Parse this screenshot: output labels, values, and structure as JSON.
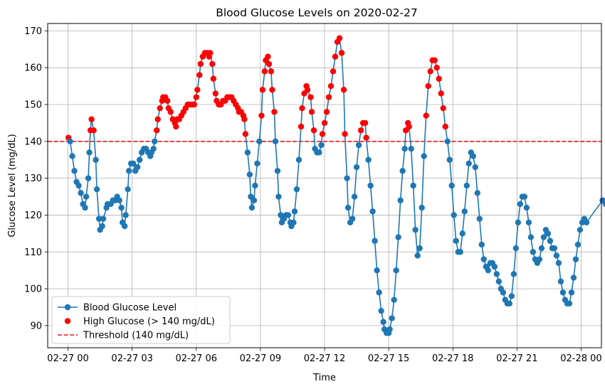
{
  "chart_data": {
    "type": "line",
    "title": "Blood Glucose Levels on 2020-02-27",
    "xlabel": "Time",
    "ylabel": "Glucose Level (mg/dL)",
    "x_unit": "hours since 02-27 00:00",
    "xlim": [
      -0.95,
      24.95
    ],
    "ylim": [
      84,
      172
    ],
    "x_ticks": [
      {
        "value": 0,
        "label": "02-27 00"
      },
      {
        "value": 3,
        "label": "02-27 03"
      },
      {
        "value": 6,
        "label": "02-27 06"
      },
      {
        "value": 9,
        "label": "02-27 09"
      },
      {
        "value": 12,
        "label": "02-27 12"
      },
      {
        "value": 15,
        "label": "02-27 15"
      },
      {
        "value": 18,
        "label": "02-27 18"
      },
      {
        "value": 21,
        "label": "02-27 21"
      },
      {
        "value": 24,
        "label": "02-28 00"
      }
    ],
    "y_ticks": [
      90,
      100,
      110,
      120,
      130,
      140,
      150,
      160,
      170
    ],
    "grid": true,
    "threshold": {
      "value": 140,
      "name": "Threshold (140 mg/dL)",
      "color": "#e41a1c",
      "style": "dashed"
    },
    "high_color": "#ff0000",
    "line_color": "#1f77b4",
    "series": [
      {
        "name": "Blood Glucose Level",
        "points": [
          [
            0.02,
            141
          ],
          [
            0.1,
            140
          ],
          [
            0.2,
            136
          ],
          [
            0.3,
            132
          ],
          [
            0.4,
            129
          ],
          [
            0.5,
            128
          ],
          [
            0.6,
            126
          ],
          [
            0.7,
            123
          ],
          [
            0.8,
            122
          ],
          [
            0.85,
            125
          ],
          [
            0.95,
            130
          ],
          [
            1.0,
            137
          ],
          [
            1.05,
            143
          ],
          [
            1.1,
            146
          ],
          [
            1.2,
            143
          ],
          [
            1.3,
            135
          ],
          [
            1.35,
            127
          ],
          [
            1.45,
            119
          ],
          [
            1.5,
            116
          ],
          [
            1.6,
            117
          ],
          [
            1.65,
            119
          ],
          [
            1.8,
            122
          ],
          [
            1.85,
            123
          ],
          [
            2.0,
            123
          ],
          [
            2.1,
            124
          ],
          [
            2.2,
            124
          ],
          [
            2.3,
            125
          ],
          [
            2.4,
            124
          ],
          [
            2.5,
            122
          ],
          [
            2.55,
            118
          ],
          [
            2.65,
            117
          ],
          [
            2.7,
            120
          ],
          [
            2.8,
            127
          ],
          [
            2.85,
            132
          ],
          [
            2.95,
            134
          ],
          [
            3.05,
            134
          ],
          [
            3.15,
            132
          ],
          [
            3.25,
            133
          ],
          [
            3.35,
            135
          ],
          [
            3.45,
            137
          ],
          [
            3.55,
            138
          ],
          [
            3.65,
            138
          ],
          [
            3.75,
            137
          ],
          [
            3.85,
            136
          ],
          [
            3.9,
            137
          ],
          [
            4.0,
            138
          ],
          [
            4.05,
            140
          ],
          [
            4.15,
            143
          ],
          [
            4.2,
            146
          ],
          [
            4.3,
            149
          ],
          [
            4.4,
            151
          ],
          [
            4.45,
            152
          ],
          [
            4.55,
            152
          ],
          [
            4.65,
            151
          ],
          [
            4.7,
            149
          ],
          [
            4.8,
            148
          ],
          [
            4.9,
            146
          ],
          [
            5.0,
            145
          ],
          [
            5.05,
            144
          ],
          [
            5.1,
            146
          ],
          [
            5.2,
            146
          ],
          [
            5.3,
            147
          ],
          [
            5.4,
            148
          ],
          [
            5.5,
            149
          ],
          [
            5.6,
            150
          ],
          [
            5.7,
            150
          ],
          [
            5.8,
            150
          ],
          [
            5.9,
            150
          ],
          [
            6.0,
            152
          ],
          [
            6.05,
            154
          ],
          [
            6.15,
            158
          ],
          [
            6.2,
            161
          ],
          [
            6.3,
            163
          ],
          [
            6.4,
            164
          ],
          [
            6.5,
            164
          ],
          [
            6.6,
            163
          ],
          [
            6.65,
            164
          ],
          [
            6.75,
            161
          ],
          [
            6.8,
            157
          ],
          [
            6.9,
            153
          ],
          [
            6.95,
            151
          ],
          [
            7.05,
            150
          ],
          [
            7.15,
            150
          ],
          [
            7.25,
            151
          ],
          [
            7.35,
            151
          ],
          [
            7.45,
            152
          ],
          [
            7.55,
            152
          ],
          [
            7.65,
            152
          ],
          [
            7.75,
            151
          ],
          [
            7.85,
            150
          ],
          [
            7.95,
            149
          ],
          [
            8.0,
            148
          ],
          [
            8.1,
            148
          ],
          [
            8.2,
            147
          ],
          [
            8.25,
            146
          ],
          [
            8.3,
            142
          ],
          [
            8.4,
            137
          ],
          [
            8.5,
            131
          ],
          [
            8.55,
            125
          ],
          [
            8.6,
            122
          ],
          [
            8.7,
            124
          ],
          [
            8.75,
            128
          ],
          [
            8.85,
            134
          ],
          [
            8.95,
            140
          ],
          [
            9.05,
            147
          ],
          [
            9.1,
            154
          ],
          [
            9.2,
            159
          ],
          [
            9.25,
            162
          ],
          [
            9.35,
            163
          ],
          [
            9.4,
            161
          ],
          [
            9.5,
            159
          ],
          [
            9.55,
            154
          ],
          [
            9.65,
            148
          ],
          [
            9.7,
            140
          ],
          [
            9.8,
            132
          ],
          [
            9.85,
            125
          ],
          [
            9.95,
            120
          ],
          [
            10.0,
            118
          ],
          [
            10.05,
            119
          ],
          [
            10.1,
            119
          ],
          [
            10.2,
            120
          ],
          [
            10.3,
            120
          ],
          [
            10.4,
            118
          ],
          [
            10.45,
            117
          ],
          [
            10.55,
            118
          ],
          [
            10.6,
            121
          ],
          [
            10.7,
            127
          ],
          [
            10.8,
            135
          ],
          [
            10.9,
            144
          ],
          [
            10.95,
            149
          ],
          [
            11.05,
            153
          ],
          [
            11.15,
            155
          ],
          [
            11.2,
            154
          ],
          [
            11.35,
            152
          ],
          [
            11.4,
            148
          ],
          [
            11.5,
            143
          ],
          [
            11.55,
            138
          ],
          [
            11.65,
            137
          ],
          [
            11.75,
            137
          ],
          [
            11.85,
            139
          ],
          [
            11.9,
            142
          ],
          [
            12.0,
            145
          ],
          [
            12.1,
            148
          ],
          [
            12.2,
            152
          ],
          [
            12.3,
            155
          ],
          [
            12.4,
            159
          ],
          [
            12.5,
            163
          ],
          [
            12.6,
            167
          ],
          [
            12.7,
            168
          ],
          [
            12.8,
            164
          ],
          [
            12.9,
            154
          ],
          [
            12.95,
            142
          ],
          [
            13.05,
            130
          ],
          [
            13.1,
            122
          ],
          [
            13.2,
            118
          ],
          [
            13.3,
            119
          ],
          [
            13.4,
            125
          ],
          [
            13.5,
            133
          ],
          [
            13.6,
            139
          ],
          [
            13.7,
            143
          ],
          [
            13.8,
            145
          ],
          [
            13.9,
            145
          ],
          [
            13.95,
            141
          ],
          [
            14.05,
            135
          ],
          [
            14.15,
            128
          ],
          [
            14.25,
            121
          ],
          [
            14.35,
            113
          ],
          [
            14.45,
            105
          ],
          [
            14.55,
            99
          ],
          [
            14.65,
            94
          ],
          [
            14.75,
            91
          ],
          [
            14.8,
            89
          ],
          [
            14.9,
            88
          ],
          [
            15.0,
            88
          ],
          [
            15.05,
            89
          ],
          [
            15.15,
            92
          ],
          [
            15.25,
            97
          ],
          [
            15.35,
            105
          ],
          [
            15.45,
            114
          ],
          [
            15.55,
            124
          ],
          [
            15.65,
            132
          ],
          [
            15.75,
            138
          ],
          [
            15.8,
            143
          ],
          [
            15.9,
            145
          ],
          [
            15.95,
            144
          ],
          [
            16.05,
            138
          ],
          [
            16.15,
            128
          ],
          [
            16.25,
            116
          ],
          [
            16.35,
            109
          ],
          [
            16.45,
            111
          ],
          [
            16.55,
            122
          ],
          [
            16.65,
            136
          ],
          [
            16.75,
            147
          ],
          [
            16.85,
            155
          ],
          [
            16.95,
            159
          ],
          [
            17.05,
            162
          ],
          [
            17.15,
            162
          ],
          [
            17.25,
            160
          ],
          [
            17.35,
            157
          ],
          [
            17.45,
            153
          ],
          [
            17.55,
            149
          ],
          [
            17.65,
            144
          ],
          [
            17.75,
            140
          ],
          [
            17.85,
            135
          ],
          [
            17.95,
            128
          ],
          [
            18.05,
            120
          ],
          [
            18.15,
            113
          ],
          [
            18.25,
            110
          ],
          [
            18.35,
            110
          ],
          [
            18.45,
            115
          ],
          [
            18.55,
            121
          ],
          [
            18.65,
            128
          ],
          [
            18.75,
            134
          ],
          [
            18.85,
            137
          ],
          [
            18.95,
            136
          ],
          [
            19.05,
            133
          ],
          [
            19.15,
            126
          ],
          [
            19.25,
            119
          ],
          [
            19.35,
            112
          ],
          [
            19.45,
            108
          ],
          [
            19.55,
            106
          ],
          [
            19.65,
            105
          ],
          [
            19.75,
            107
          ],
          [
            19.85,
            107
          ],
          [
            19.95,
            106
          ],
          [
            20.05,
            104
          ],
          [
            20.15,
            102
          ],
          [
            20.25,
            100
          ],
          [
            20.35,
            99
          ],
          [
            20.45,
            97
          ],
          [
            20.55,
            96
          ],
          [
            20.65,
            96
          ],
          [
            20.75,
            98
          ],
          [
            20.85,
            104
          ],
          [
            20.95,
            111
          ],
          [
            21.05,
            118
          ],
          [
            21.15,
            123
          ],
          [
            21.25,
            125
          ],
          [
            21.35,
            125
          ],
          [
            21.45,
            122
          ],
          [
            21.55,
            118
          ],
          [
            21.65,
            114
          ],
          [
            21.75,
            110
          ],
          [
            21.85,
            108
          ],
          [
            21.95,
            107
          ],
          [
            22.05,
            108
          ],
          [
            22.15,
            111
          ],
          [
            22.25,
            114
          ],
          [
            22.35,
            116
          ],
          [
            22.45,
            115
          ],
          [
            22.55,
            113
          ],
          [
            22.65,
            111
          ],
          [
            22.75,
            111
          ],
          [
            22.85,
            109
          ],
          [
            22.95,
            107
          ],
          [
            23.05,
            102
          ],
          [
            23.15,
            99
          ],
          [
            23.25,
            97
          ],
          [
            23.35,
            96
          ],
          [
            23.45,
            96
          ],
          [
            23.55,
            99
          ],
          [
            23.65,
            103
          ],
          [
            23.75,
            108
          ],
          [
            23.85,
            112
          ],
          [
            23.95,
            116
          ],
          [
            24.05,
            118
          ],
          [
            24.15,
            119
          ],
          [
            24.25,
            118
          ],
          [
            25.0,
            124
          ],
          [
            25.15,
            123
          ]
        ]
      }
    ],
    "legend": {
      "placement": "lower-left",
      "entries": [
        {
          "label": "Blood Glucose Level",
          "kind": "line-marker",
          "color": "#1f77b4"
        },
        {
          "label": "High Glucose (> 140 mg/dL)",
          "kind": "marker",
          "color": "#ff0000"
        },
        {
          "label": "Threshold (140 mg/dL)",
          "kind": "dashed-line",
          "color": "#e41a1c"
        }
      ]
    }
  }
}
